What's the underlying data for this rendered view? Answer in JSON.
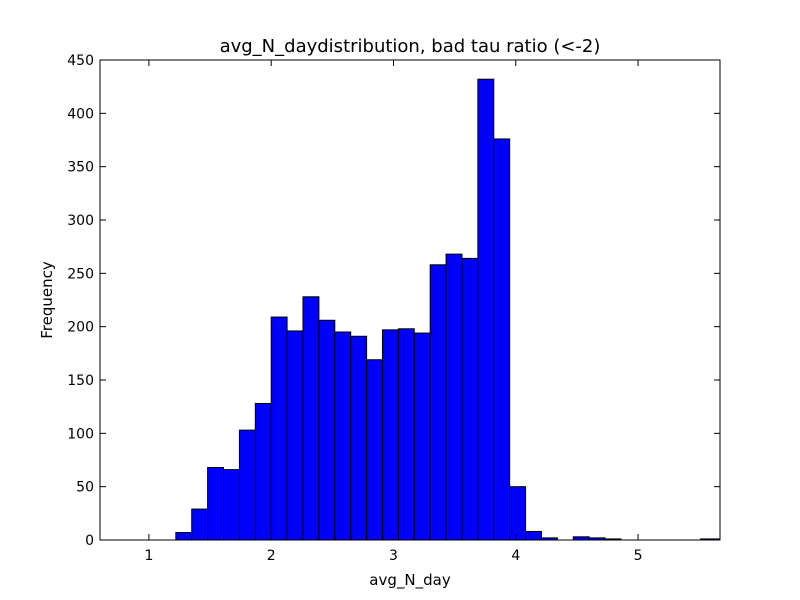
{
  "chart_data": {
    "type": "bar",
    "title": "avg_N_daydistribution, bad tau ratio (<-2)",
    "xlabel": "avg_N_day",
    "ylabel": "Frequency",
    "xlim": [
      0.6,
      5.67
    ],
    "ylim": [
      0,
      450
    ],
    "xticks": [
      1,
      2,
      3,
      4,
      5
    ],
    "yticks": [
      0,
      50,
      100,
      150,
      200,
      250,
      300,
      350,
      400,
      450
    ],
    "bar_color": "#0000ff",
    "edge_color": "#000000",
    "grid": false,
    "bin_edges": [
      1.22,
      1.35,
      1.48,
      1.61,
      1.74,
      1.87,
      2.0,
      2.13,
      2.26,
      2.39,
      2.52,
      2.65,
      2.78,
      2.91,
      3.04,
      3.17,
      3.3,
      3.43,
      3.56,
      3.69,
      3.82,
      3.95,
      4.08,
      4.21,
      4.34,
      4.47,
      4.6,
      4.73,
      4.86,
      4.99,
      5.12,
      5.25,
      5.38,
      5.51,
      5.67
    ],
    "values": [
      7,
      29,
      68,
      66,
      103,
      128,
      209,
      196,
      228,
      206,
      195,
      191,
      169,
      197,
      198,
      194,
      258,
      268,
      264,
      432,
      376,
      50,
      8,
      2,
      0,
      3,
      2,
      1,
      0,
      0,
      0,
      0,
      0,
      1
    ]
  }
}
